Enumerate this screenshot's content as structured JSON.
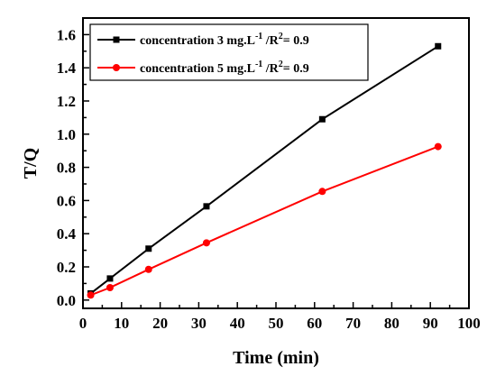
{
  "chart_data": {
    "type": "line",
    "xlabel": "Time (min)",
    "ylabel": "T/Q",
    "xlim": [
      0,
      100
    ],
    "ylim": [
      -0.05,
      1.7
    ],
    "xticks": [
      0,
      10,
      20,
      30,
      40,
      50,
      60,
      70,
      80,
      90,
      100
    ],
    "yticks": [
      0.0,
      0.2,
      0.4,
      0.6,
      0.8,
      1.0,
      1.2,
      1.4,
      1.6
    ],
    "xtick_labels": [
      "0",
      "10",
      "20",
      "30",
      "40",
      "50",
      "60",
      "70",
      "80",
      "90",
      "100"
    ],
    "ytick_labels": [
      "0.0",
      "0.2",
      "0.4",
      "0.6",
      "0.8",
      "1.0",
      "1.2",
      "1.4",
      "1.6"
    ],
    "grid": false,
    "legend_position": "top-left",
    "series": [
      {
        "name": "concentration 3 mg.L-1 /R2= 0.9",
        "legend": {
          "a": "concentration 3 mg.L",
          "sup1": "-1",
          "b": " /R",
          "sup2": "2",
          "c": "= 0.9"
        },
        "color": "#000000",
        "marker": "square",
        "x": [
          2,
          7,
          17,
          32,
          62,
          92
        ],
        "y": [
          0.04,
          0.13,
          0.31,
          0.565,
          1.09,
          1.53
        ]
      },
      {
        "name": "concentration 5 mg.L-1 /R2= 0.9",
        "legend": {
          "a": "concentration 5 mg.L",
          "sup1": "-1",
          "b": " /R",
          "sup2": "2",
          "c": "= 0.9"
        },
        "color": "#ff0000",
        "marker": "circle",
        "x": [
          2,
          7,
          17,
          32,
          62,
          92
        ],
        "y": [
          0.03,
          0.075,
          0.185,
          0.345,
          0.655,
          0.925
        ]
      }
    ]
  }
}
